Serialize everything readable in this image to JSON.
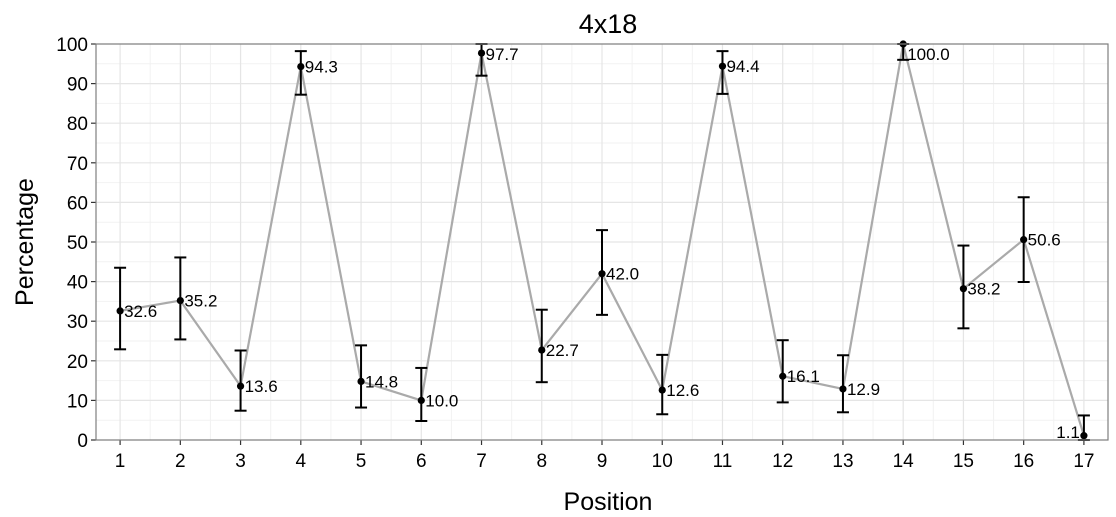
{
  "chart_data": {
    "type": "line",
    "title": "4x18",
    "xlabel": "Position",
    "ylabel": "Percentage",
    "x": [
      1,
      2,
      3,
      4,
      5,
      6,
      7,
      8,
      9,
      10,
      11,
      12,
      13,
      14,
      15,
      16,
      17
    ],
    "xlim": [
      0.6,
      17.4
    ],
    "ylim": [
      0,
      100
    ],
    "yticks": [
      0,
      10,
      20,
      30,
      40,
      50,
      60,
      70,
      80,
      90,
      100
    ],
    "grid": true,
    "series": [
      {
        "values": [
          32.6,
          35.2,
          13.6,
          94.3,
          14.8,
          10.0,
          97.7,
          22.7,
          42.0,
          12.6,
          94.4,
          16.1,
          12.9,
          100.0,
          38.2,
          50.6,
          1.1
        ],
        "labels": [
          "32.6",
          "35.2",
          "13.6",
          "94.3",
          "14.8",
          "10.0",
          "97.7",
          "22.7",
          "42.0",
          "12.6",
          "94.4",
          "16.1",
          "12.9",
          "100.0",
          "38.2",
          "50.6",
          "1.1"
        ],
        "error_low": [
          22.9,
          25.4,
          7.4,
          87.2,
          8.2,
          4.8,
          92.0,
          14.6,
          31.6,
          6.5,
          87.4,
          9.5,
          7.0,
          96.0,
          28.2,
          39.9,
          0.0
        ],
        "error_high": [
          43.5,
          46.1,
          22.6,
          98.2,
          23.9,
          18.2,
          100.0,
          32.9,
          53.0,
          21.5,
          98.2,
          25.2,
          21.4,
          100.0,
          49.1,
          61.3,
          6.2
        ],
        "line_color": "#aaaaaa",
        "point_color": "#000000"
      }
    ],
    "colors": {
      "panel_border": "#7f7f7f",
      "grid_major": "#e5e5e5",
      "grid_minor": "#f2f2f2"
    }
  }
}
